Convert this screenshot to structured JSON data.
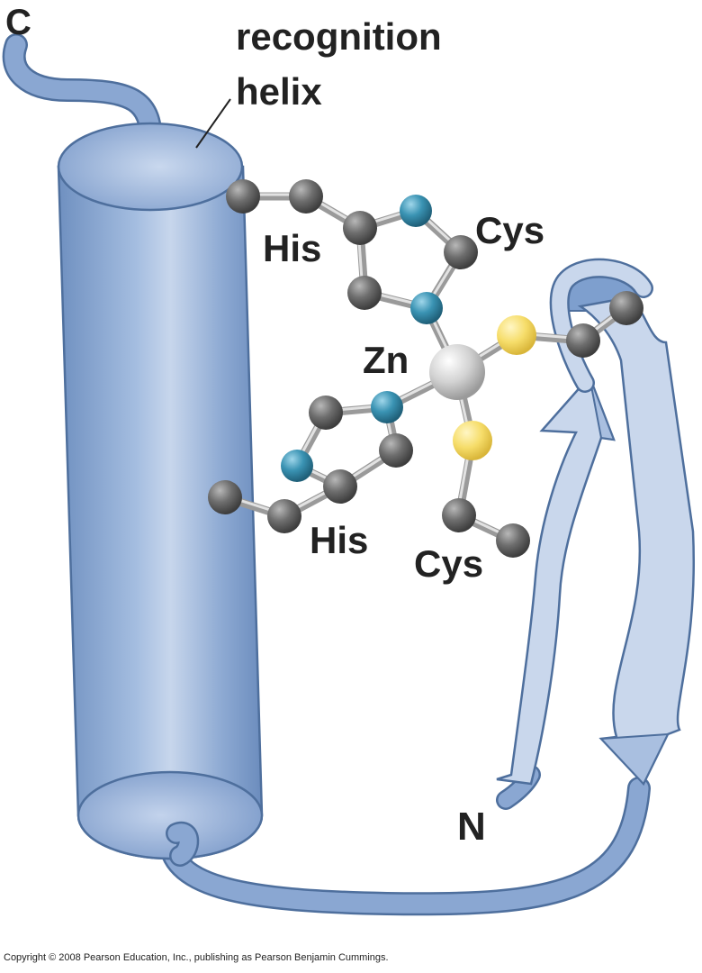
{
  "labels": {
    "c_terminus": "C",
    "recognition_helix_line1": "recognition",
    "recognition_helix_line2": "helix",
    "his_top": "His",
    "cys_top": "Cys",
    "zn": "Zn",
    "his_bottom": "His",
    "cys_bottom": "Cys",
    "n_terminus": "N"
  },
  "copyright": "Copyright © 2008 Pearson Education, Inc., publishing as Pearson Benjamin Cummings.",
  "colors": {
    "helix": "#7e9fce",
    "helix_outline": "#4e6f9d",
    "strand_fill": "#c9d7ec",
    "carbon": "#6b6b6b",
    "nitrogen": "#3a93b3",
    "sulfur": "#f3d75a",
    "zinc": "#cfcfcf",
    "bond": "#bdbdbd",
    "text": "#222222"
  }
}
